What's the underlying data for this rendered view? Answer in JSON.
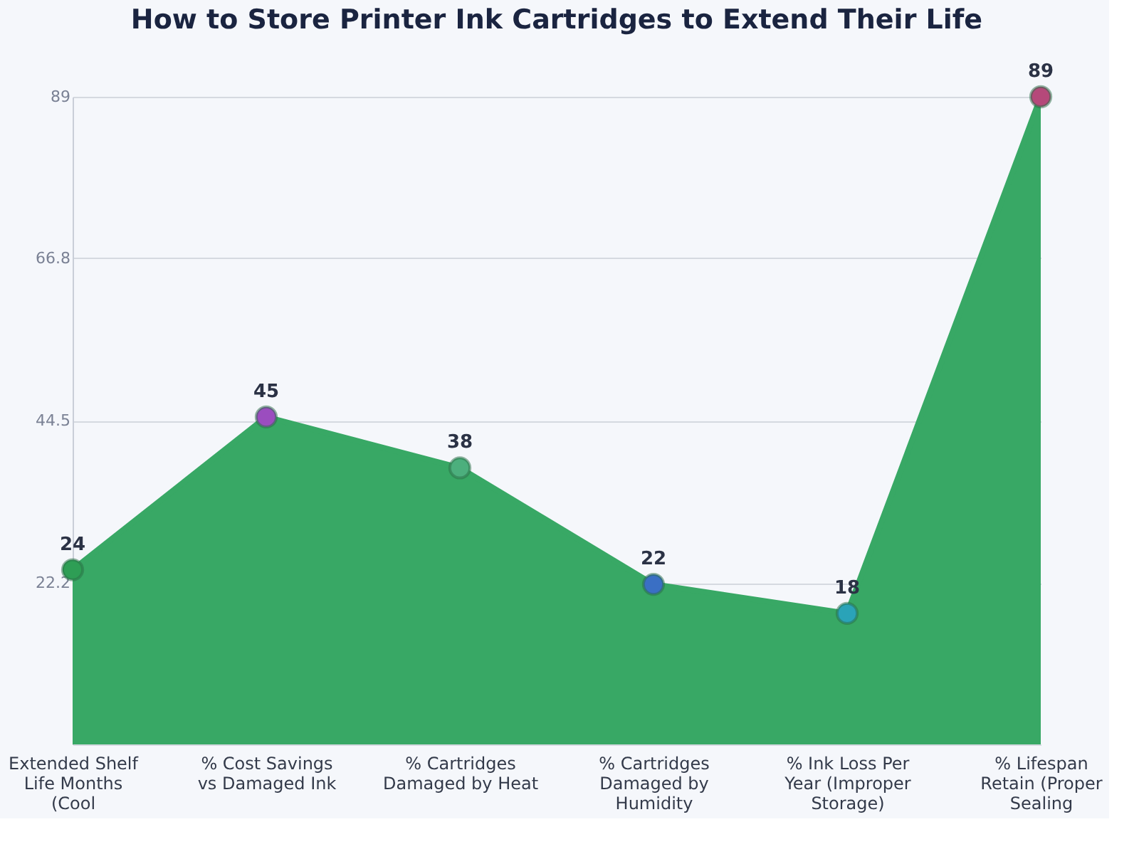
{
  "chart_data": {
    "type": "area",
    "title": "How to Store Printer Ink Cartridges to Extend Their Life",
    "categories": [
      "Extended Shelf Life Months (Cool",
      "% Cost Savings vs Damaged Ink",
      "% Cartridges Damaged by Heat",
      "% Cartridges Damaged by Humidity",
      "% Ink Loss Per Year (Improper Storage)",
      "% Lifespan Retain (Proper Sealing"
    ],
    "series": [
      {
        "color": "#38a865",
        "values": [
          24,
          45,
          38,
          22,
          18,
          89
        ],
        "colors": [
          "#2e9e55",
          "#9b4dbf",
          "#4caf7d",
          "#3a6fc4",
          "#2aa3b8",
          "#b5497a"
        ]
      }
    ],
    "ylim": [
      0,
      89
    ],
    "yticks": [
      {
        "value": 0,
        "label": null
      },
      22.2,
      44.5,
      66.8,
      89
    ],
    "grid": "y",
    "marker": "circle",
    "data_labels": true
  }
}
